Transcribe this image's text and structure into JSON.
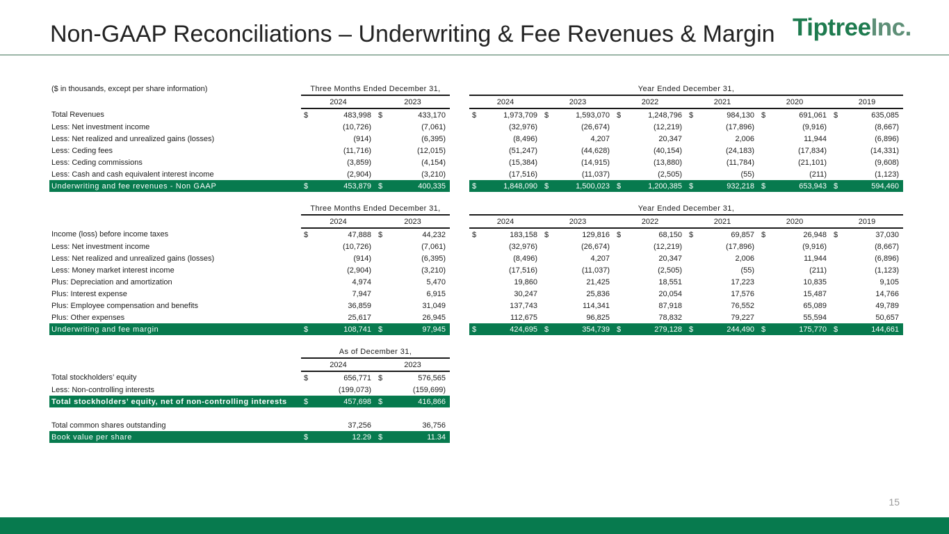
{
  "header": {
    "title": "Non-GAAP Reconciliations – Underwriting & Fee Revenues & Margin",
    "logo_main": "Tiptree",
    "logo_inc": "Inc."
  },
  "page_number": "15",
  "colors": {
    "brand_green": "#077a4e",
    "logo_green": "#1e7b4f"
  },
  "units_note": "($ in thousands, except per share information)",
  "three_months_header": "Three Months Ended December 31,",
  "year_header": "Year Ended December 31,",
  "quarter_years": [
    "2024",
    "2023"
  ],
  "annual_years": [
    "2024",
    "2023",
    "2022",
    "2021",
    "2020",
    "2019"
  ],
  "revenues_table": {
    "rows": [
      {
        "label": "Total Revenues",
        "dollar": true,
        "q": [
          "483,998",
          "433,170"
        ],
        "y": [
          "1,973,709",
          "1,593,070",
          "1,248,796",
          "984,130",
          "691,061",
          "635,085"
        ]
      },
      {
        "label": "Less: Net investment income",
        "q": [
          "(10,726)",
          "(7,061)"
        ],
        "y": [
          "(32,976)",
          "(26,674)",
          "(12,219)",
          "(17,896)",
          "(9,916)",
          "(8,667)"
        ]
      },
      {
        "label": "Less: Net realized and unrealized gains (losses)",
        "q": [
          "(914)",
          "(6,395)"
        ],
        "y": [
          "(8,496)",
          "4,207",
          "20,347",
          "2,006",
          "11,944",
          "(6,896)"
        ]
      },
      {
        "label": "Less: Ceding fees",
        "q": [
          "(11,716)",
          "(12,015)"
        ],
        "y": [
          "(51,247)",
          "(44,628)",
          "(40,154)",
          "(24,183)",
          "(17,834)",
          "(14,331)"
        ]
      },
      {
        "label": "Less: Ceding commissions",
        "q": [
          "(3,859)",
          "(4,154)"
        ],
        "y": [
          "(15,384)",
          "(14,915)",
          "(13,880)",
          "(11,784)",
          "(21,101)",
          "(9,608)"
        ]
      },
      {
        "label": "Less: Cash and cash equivalent interest income",
        "q": [
          "(2,904)",
          "(3,210)"
        ],
        "y": [
          "(17,516)",
          "(11,037)",
          "(2,505)",
          "(55)",
          "(211)",
          "(1,123)"
        ]
      }
    ],
    "total": {
      "label": "Underwriting and fee revenues - Non GAAP",
      "q": [
        "453,879",
        "400,335"
      ],
      "y": [
        "1,848,090",
        "1,500,023",
        "1,200,385",
        "932,218",
        "653,943",
        "594,460"
      ]
    }
  },
  "margin_table": {
    "rows": [
      {
        "label": "Income (loss) before income taxes",
        "dollar": true,
        "q": [
          "47,888",
          "44,232"
        ],
        "y": [
          "183,158",
          "129,816",
          "68,150",
          "69,857",
          "26,948",
          "37,030"
        ]
      },
      {
        "label": "Less: Net investment income",
        "q": [
          "(10,726)",
          "(7,061)"
        ],
        "y": [
          "(32,976)",
          "(26,674)",
          "(12,219)",
          "(17,896)",
          "(9,916)",
          "(8,667)"
        ]
      },
      {
        "label": "Less: Net realized and unrealized gains (losses)",
        "q": [
          "(914)",
          "(6,395)"
        ],
        "y": [
          "(8,496)",
          "4,207",
          "20,347",
          "2,006",
          "11,944",
          "(6,896)"
        ]
      },
      {
        "label": "Less: Money market interest income",
        "q": [
          "(2,904)",
          "(3,210)"
        ],
        "y": [
          "(17,516)",
          "(11,037)",
          "(2,505)",
          "(55)",
          "(211)",
          "(1,123)"
        ]
      },
      {
        "label": "Plus: Depreciation and amortization",
        "q": [
          "4,974",
          "5,470"
        ],
        "y": [
          "19,860",
          "21,425",
          "18,551",
          "17,223",
          "10,835",
          "9,105"
        ]
      },
      {
        "label": "Plus: Interest expense",
        "q": [
          "7,947",
          "6,915"
        ],
        "y": [
          "30,247",
          "25,836",
          "20,054",
          "17,576",
          "15,487",
          "14,766"
        ]
      },
      {
        "label": "Plus: Employee compensation and benefits",
        "q": [
          "36,859",
          "31,049"
        ],
        "y": [
          "137,743",
          "114,341",
          "87,918",
          "76,552",
          "65,089",
          "49,789"
        ]
      },
      {
        "label": "Plus: Other expenses",
        "q": [
          "25,617",
          "26,945"
        ],
        "y": [
          "112,675",
          "96,825",
          "78,832",
          "79,227",
          "55,594",
          "50,657"
        ]
      }
    ],
    "total": {
      "label": "Underwriting and fee margin",
      "q": [
        "108,741",
        "97,945"
      ],
      "y": [
        "424,695",
        "354,739",
        "279,128",
        "244,490",
        "175,770",
        "144,661"
      ]
    }
  },
  "book_value_table": {
    "header": "As of December 31,",
    "years": [
      "2024",
      "2023"
    ],
    "row1": {
      "label": "Total stockholders’ equity",
      "v": [
        "656,771",
        "576,565"
      ]
    },
    "row2": {
      "label": "Less: Non-controlling interests",
      "v": [
        "(199,073)",
        "(159,699)"
      ]
    },
    "total1": {
      "label": "Total stockholders’ equity, net of non-controlling interests",
      "v": [
        "457,698",
        "416,866"
      ]
    },
    "row3": {
      "label": "Total common shares outstanding",
      "v": [
        "37,256",
        "36,756"
      ]
    },
    "total2": {
      "label": "Book value per share",
      "v": [
        "12.29",
        "11.34"
      ]
    }
  },
  "dollar_sign": "$"
}
